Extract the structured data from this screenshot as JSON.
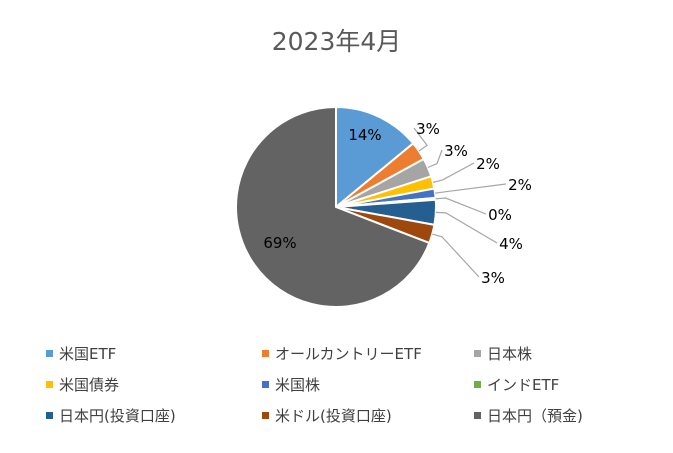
{
  "chart_data": {
    "type": "pie",
    "title": "2023年4月",
    "series": [
      {
        "name": "米国ETF",
        "label": "14%",
        "value": 14,
        "color": "#5B9BD5"
      },
      {
        "name": "オールカントリーETF",
        "label": "3%",
        "value": 3,
        "color": "#ED7D31"
      },
      {
        "name": "日本株",
        "label": "3%",
        "value": 3,
        "color": "#A5A5A5"
      },
      {
        "name": "米国債券",
        "label": "2%",
        "value": 2,
        "color": "#FFC000"
      },
      {
        "name": "米国株",
        "label": "2%",
        "value": 1.5,
        "color": "#4472C4"
      },
      {
        "name": "インドETF",
        "label": "0%",
        "value": 0.3,
        "color": "#70AD47"
      },
      {
        "name": "日本円(投資口座)",
        "label": "4%",
        "value": 4,
        "color": "#255E91"
      },
      {
        "name": "米ドル(投資口座)",
        "label": "3%",
        "value": 3,
        "color": "#9E480E"
      },
      {
        "name": "日本円（預金)",
        "label": "69%",
        "value": 69,
        "color": "#636363"
      }
    ],
    "legend_position": "bottom"
  }
}
